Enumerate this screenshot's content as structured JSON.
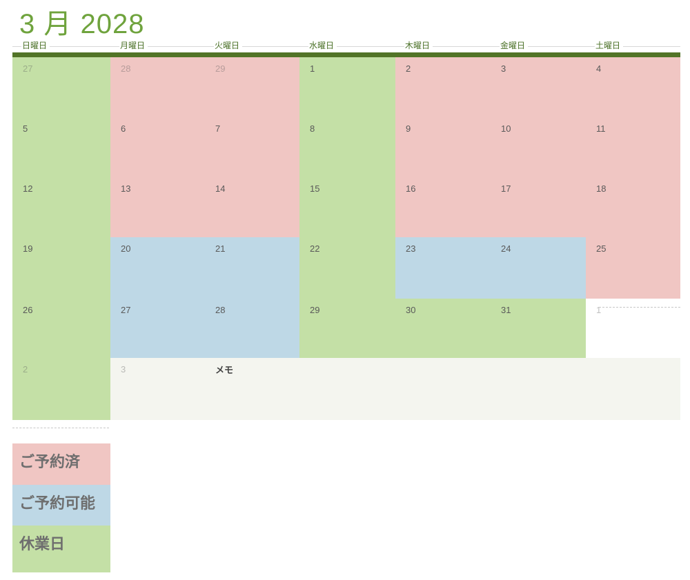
{
  "title": "3 月 2028",
  "calendar": {
    "weekday_headers": [
      "日曜日",
      "月曜日",
      "火曜日",
      "水曜日",
      "木曜日",
      "金曜日",
      "土曜日"
    ],
    "memo_label": "メモ",
    "weeks": [
      {
        "days": [
          {
            "num": "27",
            "status": "closed",
            "faded": true
          },
          {
            "num": "28",
            "status": "reserved",
            "faded": true
          },
          {
            "num": "29",
            "status": "reserved",
            "faded": true
          },
          {
            "num": "1",
            "status": "closed"
          },
          {
            "num": "2",
            "status": "reserved"
          },
          {
            "num": "3",
            "status": "reserved"
          },
          {
            "num": "4",
            "status": "reserved"
          }
        ]
      },
      {
        "days": [
          {
            "num": "5",
            "status": "closed"
          },
          {
            "num": "6",
            "status": "reserved"
          },
          {
            "num": "7",
            "status": "reserved"
          },
          {
            "num": "8",
            "status": "closed"
          },
          {
            "num": "9",
            "status": "reserved"
          },
          {
            "num": "10",
            "status": "reserved"
          },
          {
            "num": "11",
            "status": "reserved"
          }
        ]
      },
      {
        "days": [
          {
            "num": "12",
            "status": "closed"
          },
          {
            "num": "13",
            "status": "reserved"
          },
          {
            "num": "14",
            "status": "reserved"
          },
          {
            "num": "15",
            "status": "closed"
          },
          {
            "num": "16",
            "status": "reserved"
          },
          {
            "num": "17",
            "status": "reserved"
          },
          {
            "num": "18",
            "status": "reserved"
          }
        ]
      },
      {
        "days": [
          {
            "num": "19",
            "status": "closed"
          },
          {
            "num": "20",
            "status": "available"
          },
          {
            "num": "21",
            "status": "available"
          },
          {
            "num": "22",
            "status": "closed"
          },
          {
            "num": "23",
            "status": "available"
          },
          {
            "num": "24",
            "status": "available"
          },
          {
            "num": "25",
            "status": "reserved"
          }
        ]
      },
      {
        "days": [
          {
            "num": "26",
            "status": "closed"
          },
          {
            "num": "27",
            "status": "available"
          },
          {
            "num": "28",
            "status": "available"
          },
          {
            "num": "29",
            "status": "closed"
          },
          {
            "num": "30",
            "status": "closed"
          },
          {
            "num": "31",
            "status": "closed"
          },
          {
            "num": "1",
            "status": "none",
            "faded": true
          }
        ]
      },
      {
        "days": [
          {
            "num": "2",
            "status": "closed",
            "faded": true
          },
          {
            "num": "3",
            "status": "memo",
            "faded": true
          },
          {
            "num": "",
            "status": "memo",
            "label": "メモ"
          },
          {
            "num": "",
            "status": "memo"
          },
          {
            "num": "",
            "status": "memo"
          },
          {
            "num": "",
            "status": "memo"
          },
          {
            "num": "",
            "status": "memo"
          }
        ]
      }
    ]
  },
  "legend": {
    "items": [
      {
        "label": "ご予約済",
        "status": "reserved"
      },
      {
        "label": "ご予約可能",
        "status": "available"
      },
      {
        "label": "休業日",
        "status": "closed"
      }
    ]
  },
  "status_colors": {
    "reserved": "#f0c6c3",
    "available": "#bed8e6",
    "closed": "#c4e0a6",
    "memo": "#f4f5ef",
    "none": "#ffffff"
  },
  "accent_colors": {
    "title_green": "#6fa33d",
    "bar_green": "#527427",
    "weekday_green": "#4a7026"
  }
}
